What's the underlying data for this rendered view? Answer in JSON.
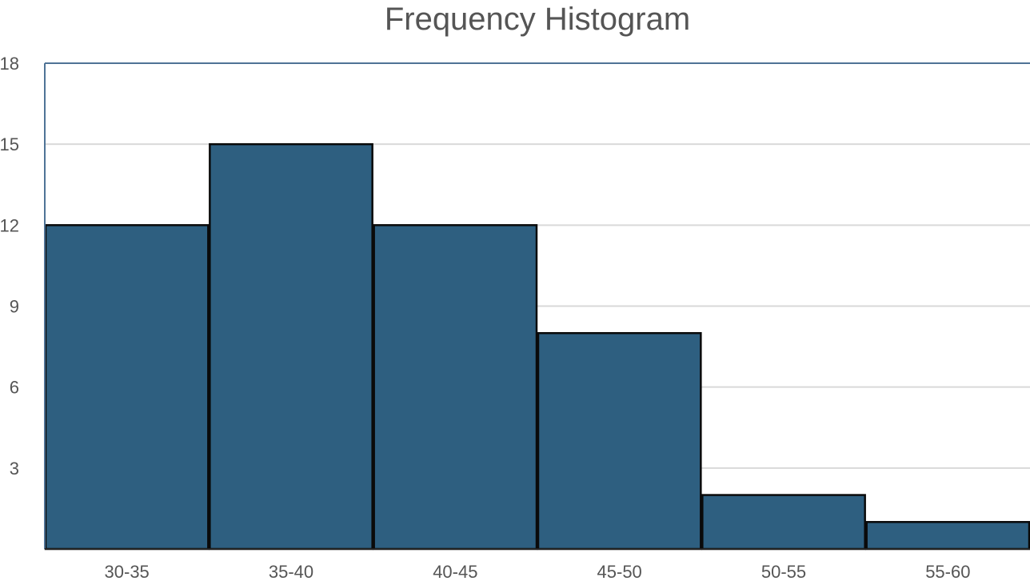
{
  "chart_data": {
    "type": "bar",
    "title": "Frequency Histogram",
    "xlabel": "",
    "ylabel": "",
    "categories": [
      "30-35",
      "35-40",
      "40-45",
      "45-50",
      "50-55",
      "55-60"
    ],
    "values": [
      12,
      15,
      12,
      8,
      2,
      1
    ],
    "ylim": [
      0,
      18
    ],
    "yticks": [
      3,
      6,
      9,
      12,
      15,
      18
    ],
    "grid": true,
    "legend": "none",
    "colors": {
      "bar_fill": "#2e5f80",
      "bar_stroke": "#0a0a0a",
      "grid": "#d9d9d9",
      "axis": "#4f7396",
      "text": "#555555"
    }
  }
}
